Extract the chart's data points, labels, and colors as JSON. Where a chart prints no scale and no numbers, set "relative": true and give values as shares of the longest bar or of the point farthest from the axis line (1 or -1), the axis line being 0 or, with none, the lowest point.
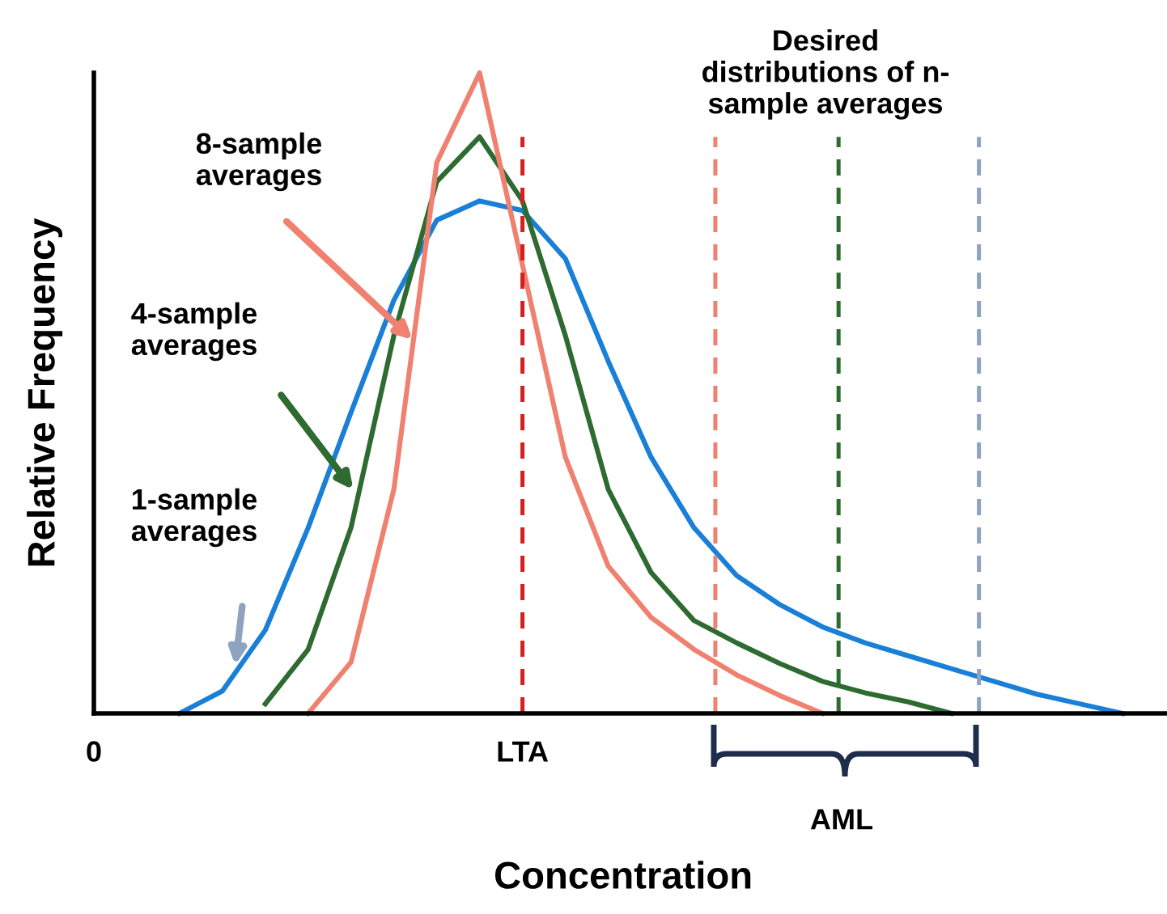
{
  "chart_data": {
    "type": "line",
    "relative": true,
    "xlabel": "Concentration",
    "ylabel": "Relative Frequency",
    "categories": [
      "0",
      null,
      null,
      null,
      null,
      null,
      null,
      null,
      null,
      null,
      "LTA",
      null,
      null,
      null,
      null,
      null,
      null,
      null,
      null,
      null,
      null,
      null,
      null,
      null,
      null,
      null
    ],
    "marker": "none",
    "line_style": "solid",
    "series": [
      {
        "color": "#1a7fd6",
        "values": [
          null,
          null,
          0,
          0.035,
          0.13,
          0.29,
          0.47,
          0.645,
          0.77,
          0.8,
          0.785,
          0.71,
          0.55,
          0.4,
          0.29,
          0.215,
          0.17,
          0.135,
          0.11,
          0.09,
          0.07,
          0.05,
          0.03,
          0.015,
          0,
          null
        ]
      },
      {
        "color": "#2e6b30",
        "values": [
          null,
          null,
          null,
          null,
          0.015,
          0.1,
          0.29,
          0.59,
          0.83,
          0.9,
          0.8,
          0.59,
          0.35,
          0.22,
          0.145,
          0.11,
          0.078,
          0.05,
          0.032,
          0.018,
          0,
          null,
          null,
          null,
          null,
          null
        ]
      },
      {
        "color": "#f08070",
        "values": [
          null,
          null,
          null,
          null,
          null,
          0,
          0.08,
          0.35,
          0.86,
          1,
          0.7,
          0.4,
          0.23,
          0.15,
          0.1,
          0.06,
          0.028,
          0,
          null,
          null,
          null,
          null,
          null,
          null,
          null,
          null
        ]
      }
    ],
    "ref_lines": [
      {
        "axis": "x",
        "value": "LTA",
        "color": "#d42020",
        "line_style": "dashed"
      }
    ],
    "annotations": [
      "1-sample\naverages",
      "4-sample\naverages",
      "8-sample\naverages",
      "Desired\ndistributions of n-\nsample averages",
      "AML"
    ]
  }
}
